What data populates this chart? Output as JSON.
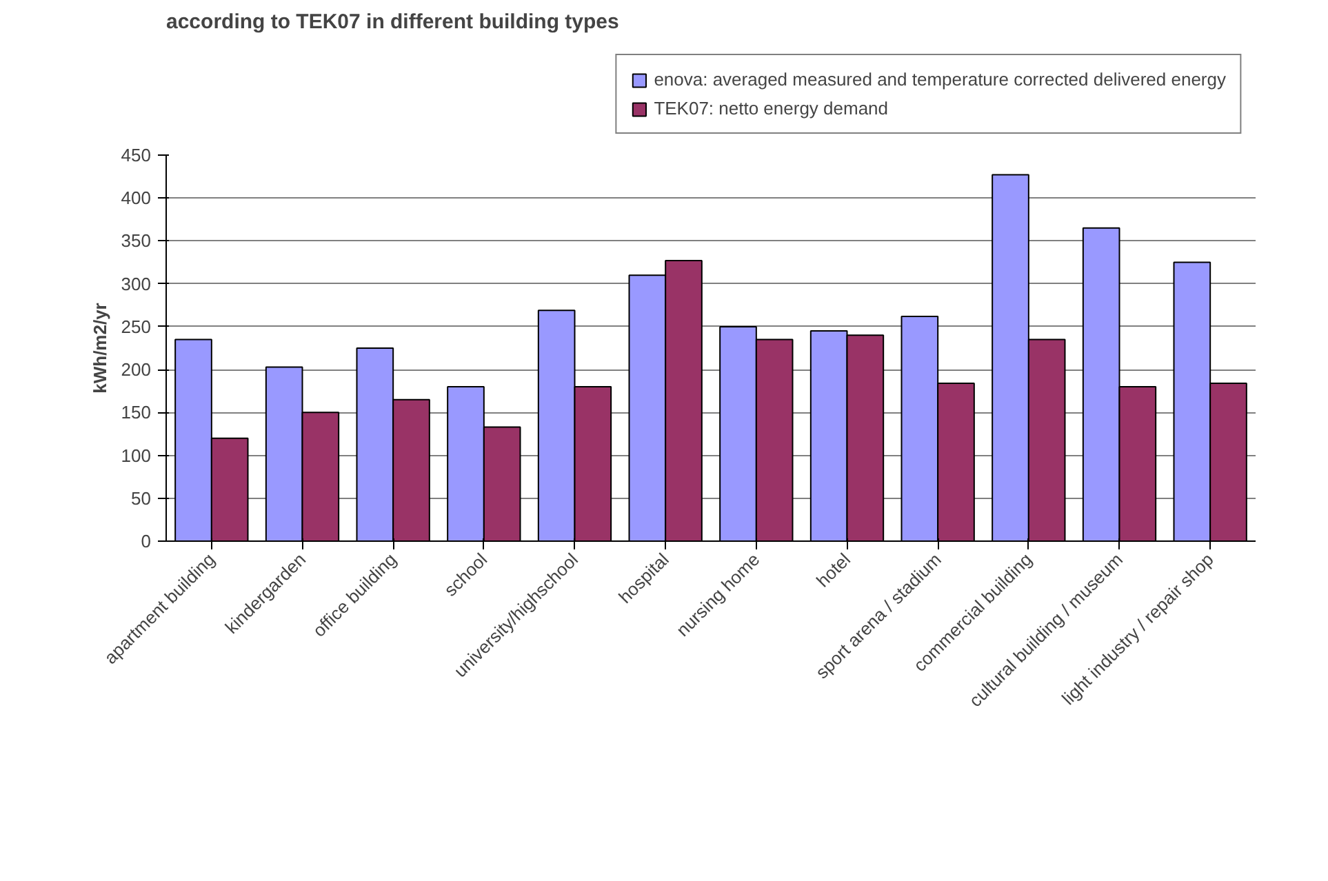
{
  "chart_data": {
    "type": "bar",
    "title": "according to TEK07 in different building types",
    "ylabel": "kWh/m2/yr",
    "categories": [
      "apartment building",
      "kindergarden",
      "office building",
      "school",
      "university/highschool",
      "hospital",
      "nursing home",
      "hotel",
      "sport arena / stadium",
      "commercial building",
      "cultural building / museum",
      "light industry / repair shop"
    ],
    "series": [
      {
        "name": "enova: averaged measured and temperature corrected delivered energy",
        "color": "#9999ff",
        "values": [
          235,
          203,
          225,
          180,
          269,
          310,
          250,
          245,
          262,
          427,
          365,
          325
        ]
      },
      {
        "name": "TEK07: netto energy demand",
        "color": "#993366",
        "values": [
          120,
          150,
          165,
          133,
          180,
          327,
          235,
          240,
          184,
          235,
          180,
          184
        ]
      }
    ],
    "ylim": [
      0,
      450
    ],
    "yticks": [
      0,
      50,
      100,
      150,
      200,
      250,
      300,
      350,
      400,
      450
    ],
    "grid": "y",
    "legend": "top right"
  }
}
